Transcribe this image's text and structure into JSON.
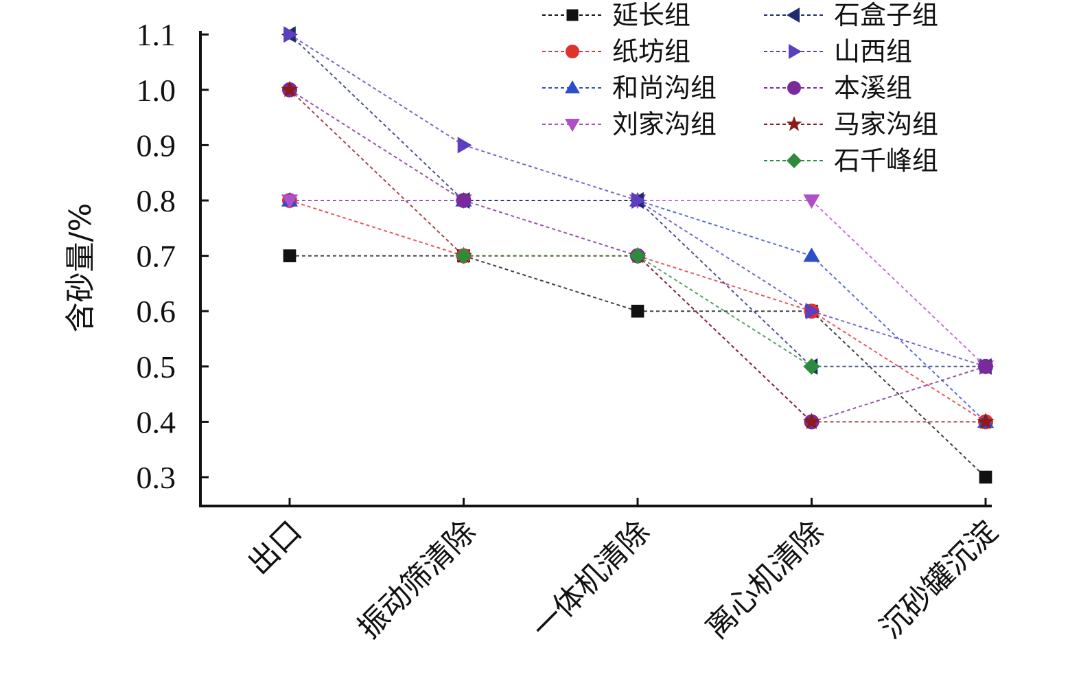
{
  "chart_data": {
    "type": "line",
    "title": "",
    "xlabel": "",
    "ylabel": "含砂量/%",
    "ylim": [
      0.3,
      1.1
    ],
    "yticks": [
      "0.3",
      "0.4",
      "0.5",
      "0.6",
      "0.7",
      "0.8",
      "0.9",
      "1.0",
      "1.1"
    ],
    "categories": [
      "出口",
      "振动筛清除",
      "一体机清除",
      "离心机清除",
      "沉砂罐沉淀"
    ],
    "grid": false,
    "legend_position": "top-right",
    "series": [
      {
        "name": "延长组",
        "color": "#111111",
        "marker": "square",
        "values": [
          0.7,
          0.7,
          0.6,
          0.6,
          0.3
        ]
      },
      {
        "name": "纸坊组",
        "color": "#e03030",
        "marker": "circle",
        "values": [
          0.8,
          0.7,
          0.7,
          0.6,
          0.4
        ]
      },
      {
        "name": "和尚沟组",
        "color": "#2a4fc8",
        "marker": "triangle-up",
        "values": [
          0.8,
          0.8,
          0.8,
          0.7,
          0.4
        ]
      },
      {
        "name": "刘家沟组",
        "color": "#b050c8",
        "marker": "triangle-down",
        "values": [
          0.8,
          0.8,
          0.8,
          0.8,
          0.5
        ]
      },
      {
        "name": "石盒子组",
        "color": "#1e2a6e",
        "marker": "triangle-left",
        "values": [
          1.1,
          0.8,
          0.8,
          0.5,
          0.5
        ]
      },
      {
        "name": "山西组",
        "color": "#5b3fbf",
        "marker": "triangle-right",
        "values": [
          1.1,
          0.9,
          0.8,
          0.6,
          0.5
        ]
      },
      {
        "name": "本溪组",
        "color": "#7a2a9a",
        "marker": "circle",
        "values": [
          1.0,
          0.8,
          0.7,
          0.4,
          0.5
        ]
      },
      {
        "name": "马家沟组",
        "color": "#8b1a1a",
        "marker": "star",
        "values": [
          1.0,
          0.7,
          0.7,
          0.4,
          0.4
        ]
      },
      {
        "name": "石千峰组",
        "color": "#2e8b3e",
        "marker": "diamond",
        "values": [
          null,
          0.7,
          0.7,
          0.5,
          null
        ]
      }
    ]
  }
}
